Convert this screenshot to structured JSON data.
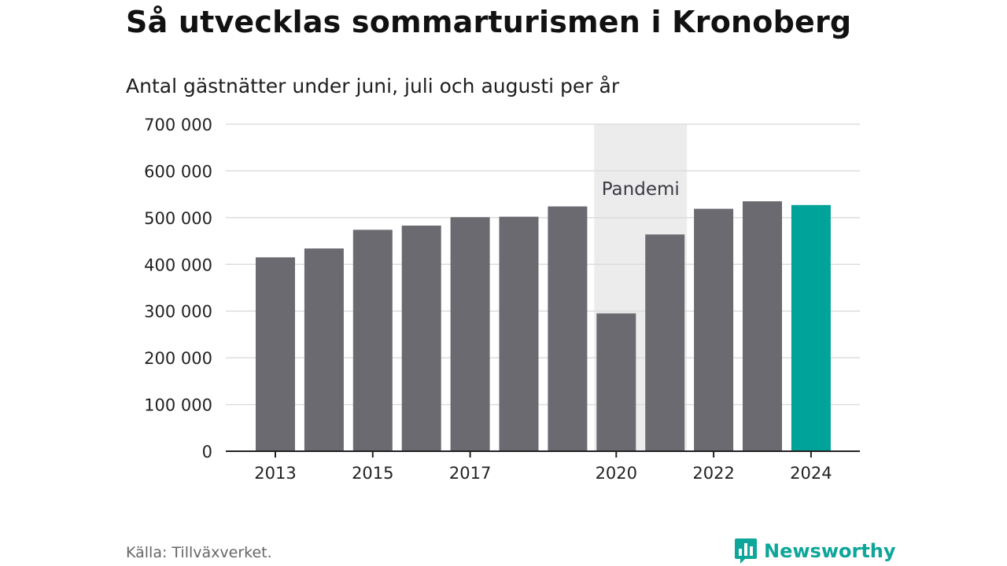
{
  "header": {
    "title": "Så utvecklas sommarturismen i Kronoberg",
    "subtitle": "Antal gästnätter under juni, juli och augusti per år"
  },
  "footer": {
    "source": "Källa: Tillväxverket.",
    "brand": "Newsworthy",
    "brand_icon": "bar-chart-speech-bubble-icon"
  },
  "colors": {
    "bar": "#6b6a71",
    "highlight_bar": "#00a39a",
    "pandemic_band": "#ececec",
    "gridline": "#dddddd",
    "axis": "#222222",
    "brand": "#0ea69a"
  },
  "chart_data": {
    "type": "bar",
    "title": "Så utvecklas sommarturismen i Kronoberg",
    "subtitle": "Antal gästnätter under juni, juli och augusti per år",
    "categories": [
      "2013",
      "2014",
      "2015",
      "2016",
      "2017",
      "2018",
      "2019",
      "2020",
      "2021",
      "2022",
      "2023",
      "2024"
    ],
    "values": [
      415000,
      434000,
      474000,
      483000,
      501000,
      502000,
      524000,
      295000,
      464000,
      519000,
      535000,
      527000
    ],
    "highlight_category": "2024",
    "x_tick_labels": [
      "2013",
      "2015",
      "2017",
      "2020",
      "2022",
      "2024"
    ],
    "y_ticks": [
      0,
      100000,
      200000,
      300000,
      400000,
      500000,
      600000,
      700000
    ],
    "y_tick_labels": [
      "0",
      "100 000",
      "200 000",
      "300 000",
      "400 000",
      "500 000",
      "600 000",
      "700 000"
    ],
    "ylim": [
      0,
      700000
    ],
    "grid": true,
    "xlabel": "",
    "ylabel": "",
    "annotations": [
      {
        "type": "band",
        "label": "Pandemi",
        "from": "2020",
        "to": "2021"
      }
    ]
  }
}
